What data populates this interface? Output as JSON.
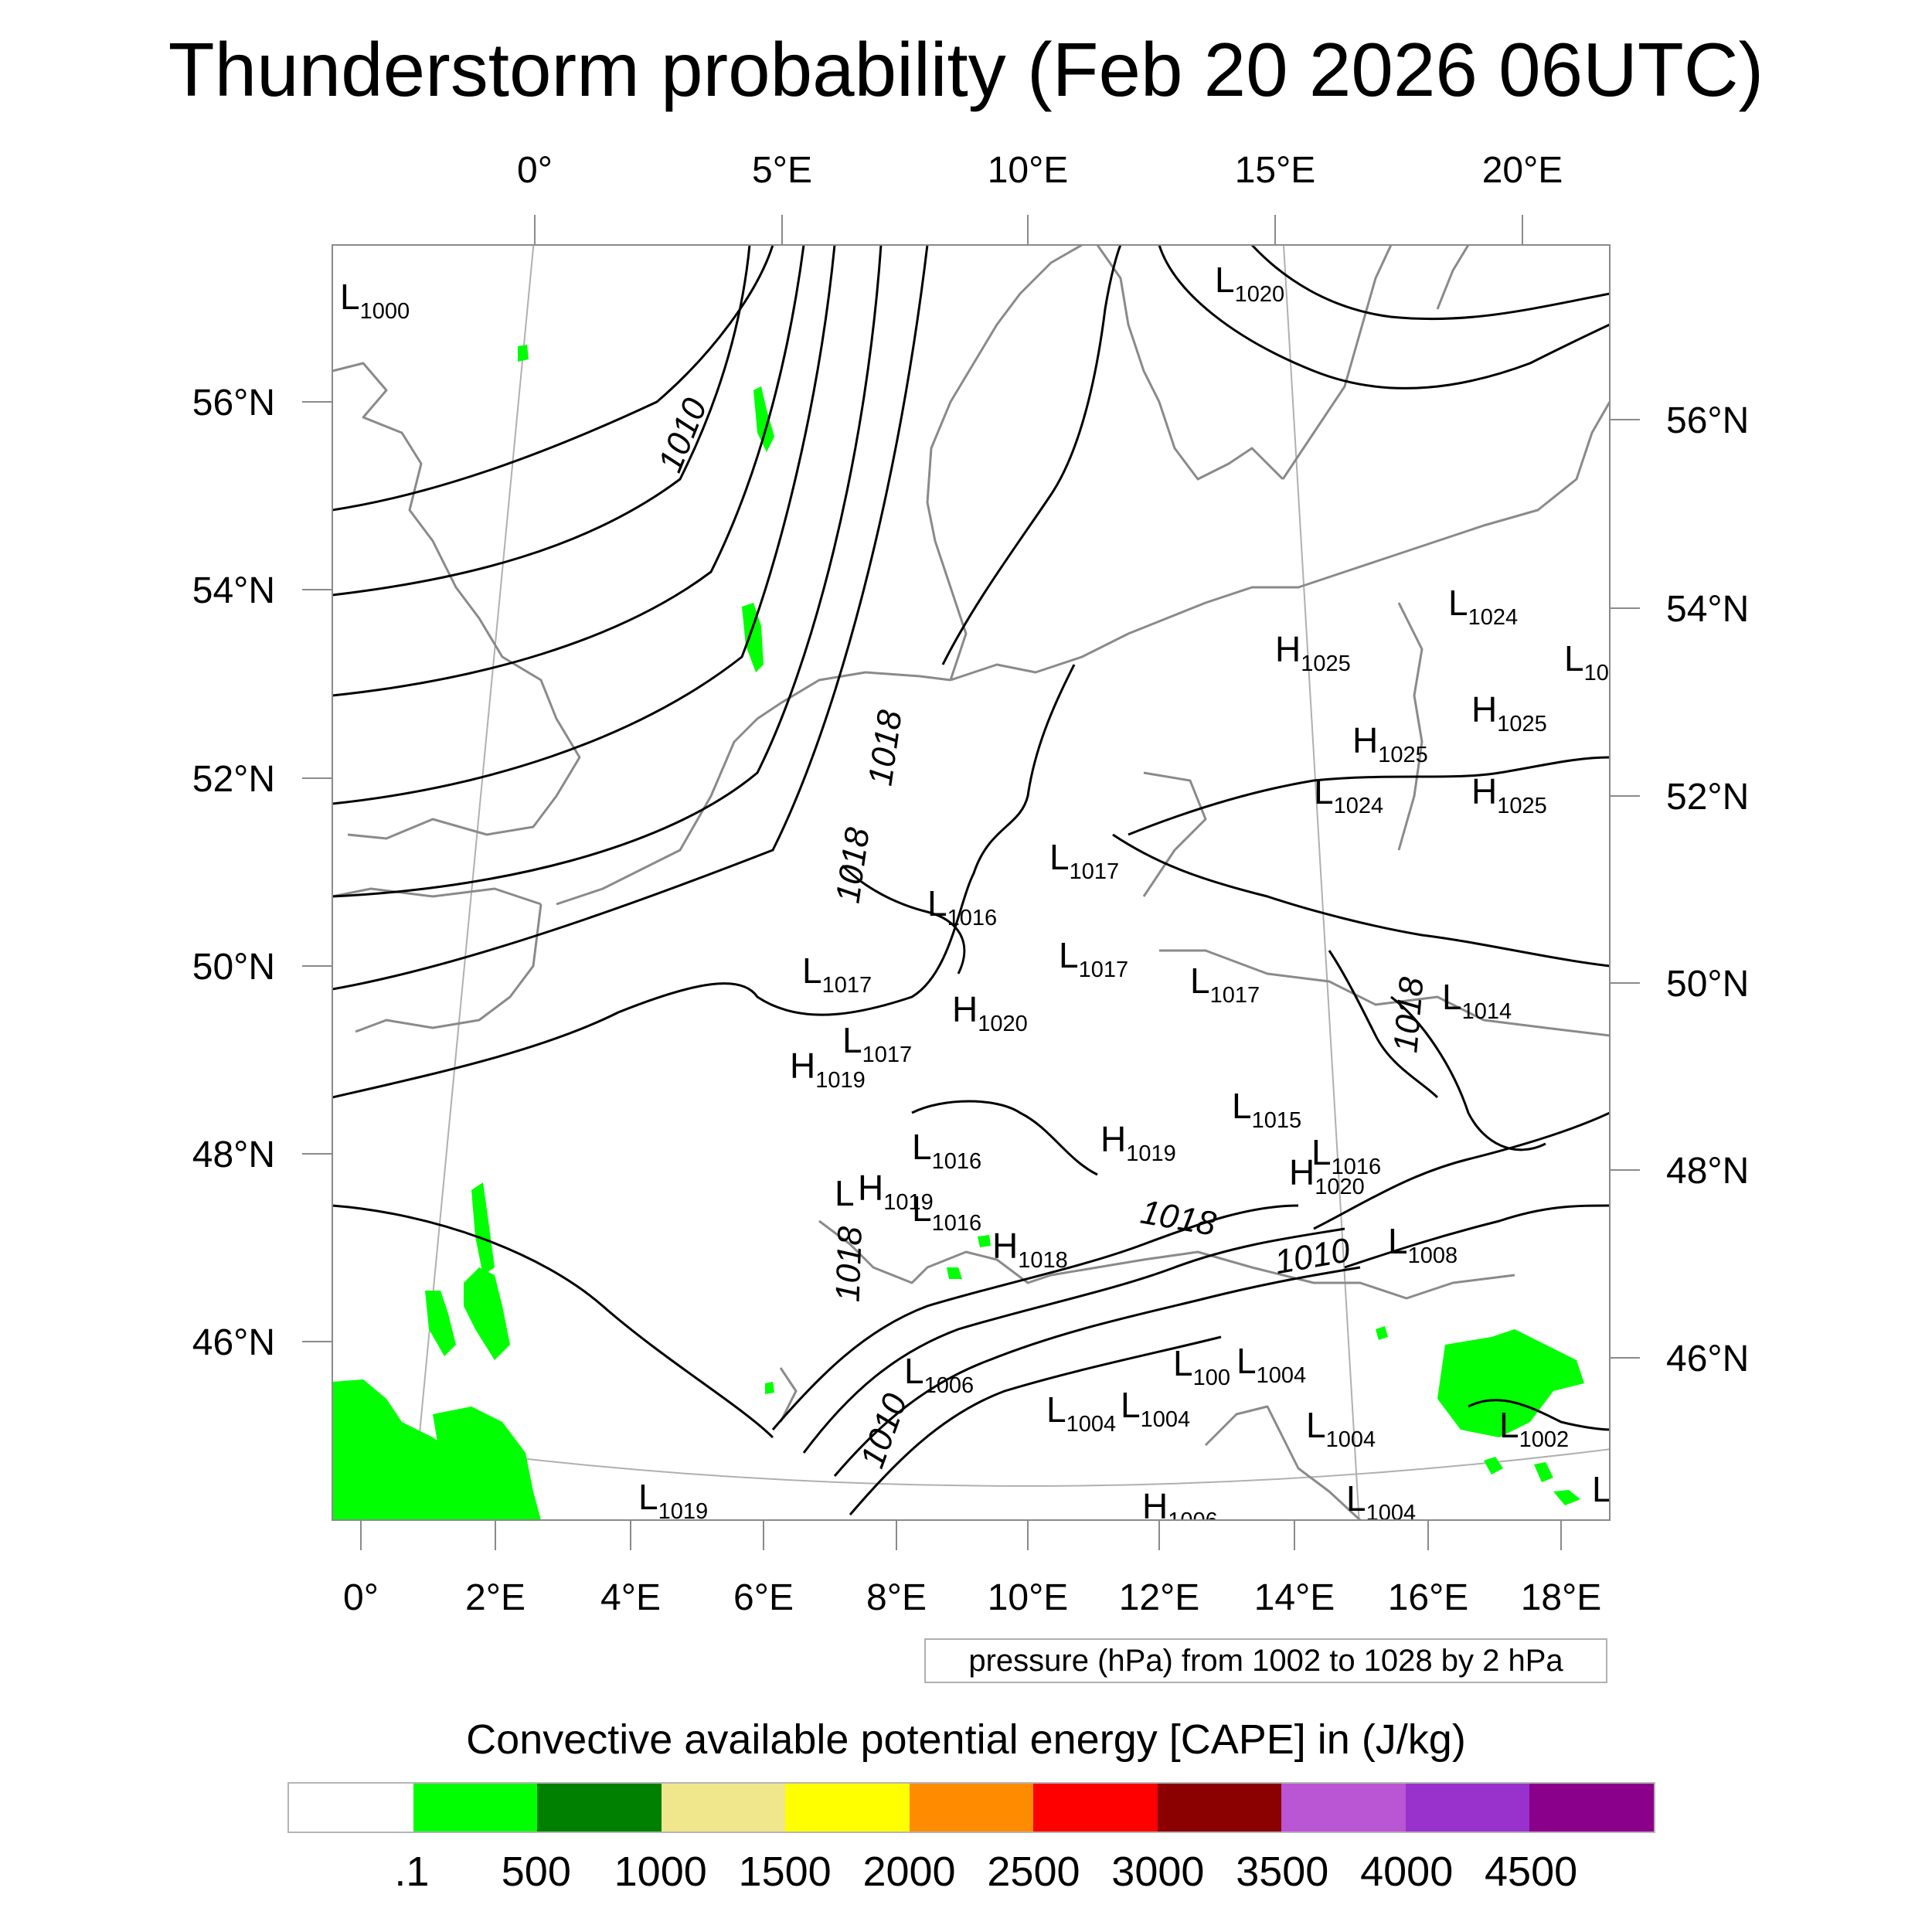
{
  "title": "Thunderstorm probability (Feb 20 2026 06UTC)",
  "axes": {
    "top_lon_labels": [
      "0°",
      "5°E",
      "10°E",
      "15°E",
      "20°E"
    ],
    "bottom_lon_labels": [
      "0°",
      "2°E",
      "4°E",
      "6°E",
      "8°E",
      "10°E",
      "12°E",
      "14°E",
      "16°E",
      "18°E"
    ],
    "left_lat_labels": [
      "56°N",
      "54°N",
      "52°N",
      "50°N",
      "48°N",
      "46°N"
    ],
    "right_lat_labels": [
      "56°N",
      "54°N",
      "52°N",
      "50°N",
      "48°N",
      "46°N"
    ]
  },
  "contour_labels": [
    "1010",
    "1018",
    "1018",
    "1018",
    "1018",
    "1010",
    "1010",
    "1018"
  ],
  "pressure_centers": [
    {
      "type": "L",
      "value": "1000"
    },
    {
      "type": "L",
      "value": "1020"
    },
    {
      "type": "L",
      "value": "1024"
    },
    {
      "type": "H",
      "value": "1025"
    },
    {
      "type": "L",
      "value": "10"
    },
    {
      "type": "H",
      "value": "1025"
    },
    {
      "type": "H",
      "value": "1025"
    },
    {
      "type": "L",
      "value": "1024"
    },
    {
      "type": "H",
      "value": "1025"
    },
    {
      "type": "L",
      "value": "1017"
    },
    {
      "type": "L",
      "value": "1016"
    },
    {
      "type": "L",
      "value": "1017"
    },
    {
      "type": "L",
      "value": "1017"
    },
    {
      "type": "L",
      "value": "1017"
    },
    {
      "type": "H",
      "value": "1020"
    },
    {
      "type": "L",
      "value": "1014"
    },
    {
      "type": "L",
      "value": "1017"
    },
    {
      "type": "H",
      "value": "1019"
    },
    {
      "type": "L",
      "value": "1015"
    },
    {
      "type": "L",
      "value": "1016"
    },
    {
      "type": "H",
      "value": "1019"
    },
    {
      "type": "L",
      "value": "1016"
    },
    {
      "type": "H",
      "value": "1020"
    },
    {
      "type": "L",
      "value": ""
    },
    {
      "type": "H",
      "value": "1019"
    },
    {
      "type": "L",
      "value": "1016"
    },
    {
      "type": "H",
      "value": "1018"
    },
    {
      "type": "L",
      "value": "1008"
    },
    {
      "type": "L",
      "value": "1006"
    },
    {
      "type": "L",
      "value": "100"
    },
    {
      "type": "L",
      "value": "1004"
    },
    {
      "type": "L",
      "value": "1004"
    },
    {
      "type": "L",
      "value": "1004"
    },
    {
      "type": "L",
      "value": "1004"
    },
    {
      "type": "L",
      "value": "1002"
    },
    {
      "type": "L",
      "value": "1019"
    },
    {
      "type": "H",
      "value": "1006"
    },
    {
      "type": "L",
      "value": "1004"
    },
    {
      "type": "L",
      "value": ""
    }
  ],
  "pressure_legend": "pressure (hPa) from 1002 to 1028 by 2 hPa",
  "colorbar": {
    "title": "Convective available potential energy [CAPE] in (J/kg)",
    "colors": [
      "#ffffff",
      "#00ff00",
      "#008000",
      "#f0e68c",
      "#ffff00",
      "#ff8c00",
      "#ff0000",
      "#8b0000",
      "#ba55d3",
      "#9932cc",
      "#8b008b"
    ],
    "labels": [
      ".1",
      "500",
      "1000",
      "1500",
      "2000",
      "2500",
      "3000",
      "3500",
      "4000",
      "4500"
    ]
  },
  "colors": {
    "cape_low": "#00ff00",
    "coastline": "#8a8a8a",
    "isobar": "#000000",
    "graticule": "#b0b0b0"
  }
}
